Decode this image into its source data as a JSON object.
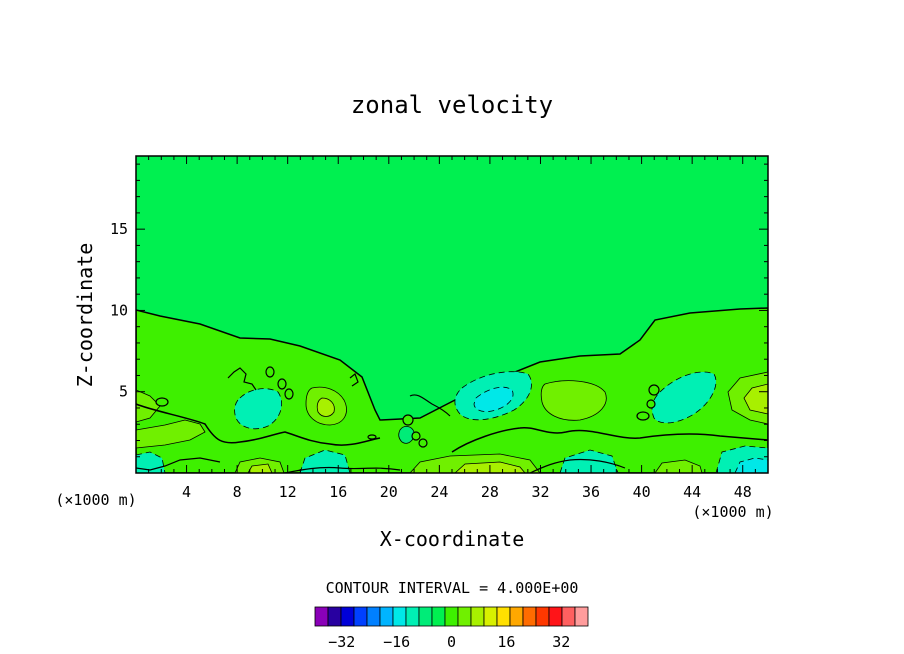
{
  "chart_data": {
    "type": "contour",
    "title": "zonal velocity",
    "xlabel": "X-coordinate",
    "ylabel": "Z-coordinate",
    "x_unit_left": "(×1000 m)",
    "x_unit_right": "(×1000 m)",
    "x_ticks": [
      4,
      8,
      12,
      16,
      20,
      24,
      28,
      32,
      36,
      40,
      44,
      48
    ],
    "y_ticks": [
      5,
      10,
      15
    ],
    "xlim": [
      0,
      50
    ],
    "ylim": [
      0,
      19.5
    ],
    "grid": false,
    "contour_interval_text": "CONTOUR INTERVAL = 4.000E+00",
    "colorbar": {
      "levels": [
        -36,
        -32,
        -28,
        -24,
        -20,
        -16,
        -12,
        -8,
        -4,
        0,
        4,
        8,
        12,
        16,
        20,
        24,
        28,
        32,
        36
      ],
      "tick_labels": [
        -32,
        -16,
        0,
        16,
        32
      ],
      "colors": [
        "#8a00b8",
        "#2800a0",
        "#0000d8",
        "#0040ff",
        "#0080ff",
        "#00b4ff",
        "#00e8e8",
        "#00f0b4",
        "#00ec78",
        "#00f050",
        "#3ef000",
        "#70f000",
        "#a8f000",
        "#d8f000",
        "#ffe000",
        "#ffa800",
        "#ff6c00",
        "#ff3800",
        "#ff1418",
        "#ff6060",
        "#ff9c9c"
      ]
    },
    "field_colors": {
      "background": "#00f050",
      "light_positive": "#3ef000",
      "medium_positive": "#70f000",
      "strong_positive": "#a8f000",
      "weak_negative": "#00ec78",
      "medium_negative": "#00f0b4",
      "strong_negative": "#00e8e8"
    }
  }
}
